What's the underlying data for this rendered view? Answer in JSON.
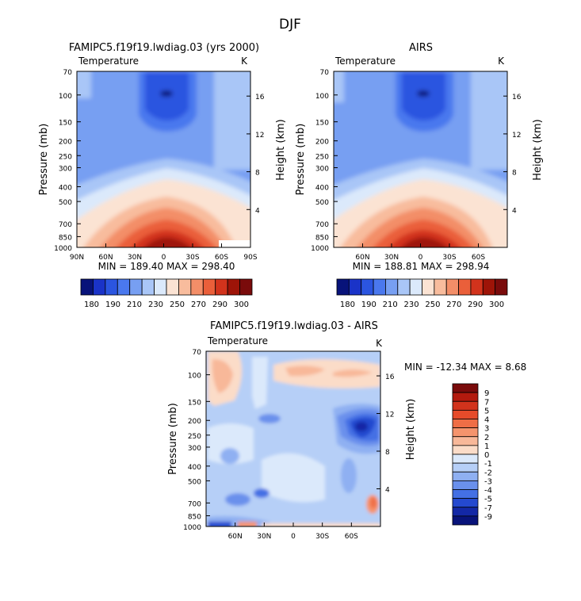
{
  "page_title": "DJF",
  "chart_data": [
    {
      "type": "heatmap",
      "title": "FAMIPC5.f19f19.lwdiag.03 (yrs 2000)",
      "left_label": "Temperature",
      "right_label": "K",
      "xlabel": "",
      "ylabel": "Pressure (mb)",
      "y2label": "Height (km)",
      "x_ticks": [
        "90N",
        "60N",
        "30N",
        "0",
        "30S",
        "60S",
        "90S"
      ],
      "y_ticks": [
        "70",
        "100",
        "150",
        "200",
        "250",
        "300",
        "400",
        "500",
        "700",
        "850",
        "1000"
      ],
      "y2_ticks": [
        "16",
        "12",
        "8",
        "4"
      ],
      "xlim": [
        90,
        -90
      ],
      "ylim": [
        1000,
        70
      ],
      "stats": "MIN = 189.40   MAX = 298.40",
      "min": 189.4,
      "max": 298.4,
      "legend_levels": [
        "180",
        "190",
        "210",
        "230",
        "250",
        "270",
        "290",
        "300"
      ]
    },
    {
      "type": "heatmap",
      "title": "AIRS",
      "left_label": "Temperature",
      "right_label": "K",
      "xlabel": "",
      "ylabel": "Pressure (mb)",
      "y2label": "Height (km)",
      "x_ticks": [
        "60N",
        "30N",
        "0",
        "30S",
        "60S"
      ],
      "y_ticks": [
        "70",
        "100",
        "150",
        "200",
        "250",
        "300",
        "400",
        "500",
        "700",
        "850",
        "1000"
      ],
      "y2_ticks": [
        "16",
        "12",
        "8",
        "4"
      ],
      "xlim": [
        90,
        -90
      ],
      "ylim": [
        1000,
        70
      ],
      "stats": "MIN = 188.81   MAX = 298.94",
      "min": 188.81,
      "max": 298.94,
      "legend_levels": [
        "180",
        "190",
        "210",
        "230",
        "250",
        "270",
        "290",
        "300"
      ]
    },
    {
      "type": "heatmap",
      "title": "FAMIPC5.f19f19.lwdiag.03 - AIRS",
      "left_label": "Temperature",
      "right_label": "K",
      "xlabel": "",
      "ylabel": "Pressure (mb)",
      "y2label": "Height (km)",
      "x_ticks": [
        "60N",
        "30N",
        "0",
        "30S",
        "60S"
      ],
      "y_ticks": [
        "70",
        "100",
        "150",
        "200",
        "250",
        "300",
        "400",
        "500",
        "700",
        "850",
        "1000"
      ],
      "y2_ticks": [
        "16",
        "12",
        "8",
        "4"
      ],
      "xlim": [
        90,
        -90
      ],
      "ylim": [
        1000,
        70
      ],
      "stats": "MIN = -12.34   MAX =   8.68",
      "min": -12.34,
      "max": 8.68,
      "legend_levels": [
        "9",
        "7",
        "5",
        "4",
        "3",
        "2",
        "1",
        "0",
        "-1",
        "-2",
        "-3",
        "-4",
        "-5",
        "-7",
        "-9"
      ]
    }
  ],
  "colors": {
    "temp_scale": [
      "#08137a",
      "#1a33c8",
      "#2b55e0",
      "#4a78ee",
      "#779ff2",
      "#a9c6f7",
      "#dbe9fb",
      "#fbe3d3",
      "#f8bc9d",
      "#f38e68",
      "#ea5f3a",
      "#d2331c",
      "#9e1408",
      "#7a0b0b"
    ],
    "diff_scale": [
      "#7a0b0b",
      "#b31a0e",
      "#d2331c",
      "#e64b2a",
      "#ef6e46",
      "#f5946d",
      "#f8b899",
      "#fbdcc8",
      "#dbe9fb",
      "#b6cff7",
      "#8fb0f2",
      "#6a90ec",
      "#4470e4",
      "#2449cf",
      "#1328a6",
      "#08137a"
    ]
  }
}
